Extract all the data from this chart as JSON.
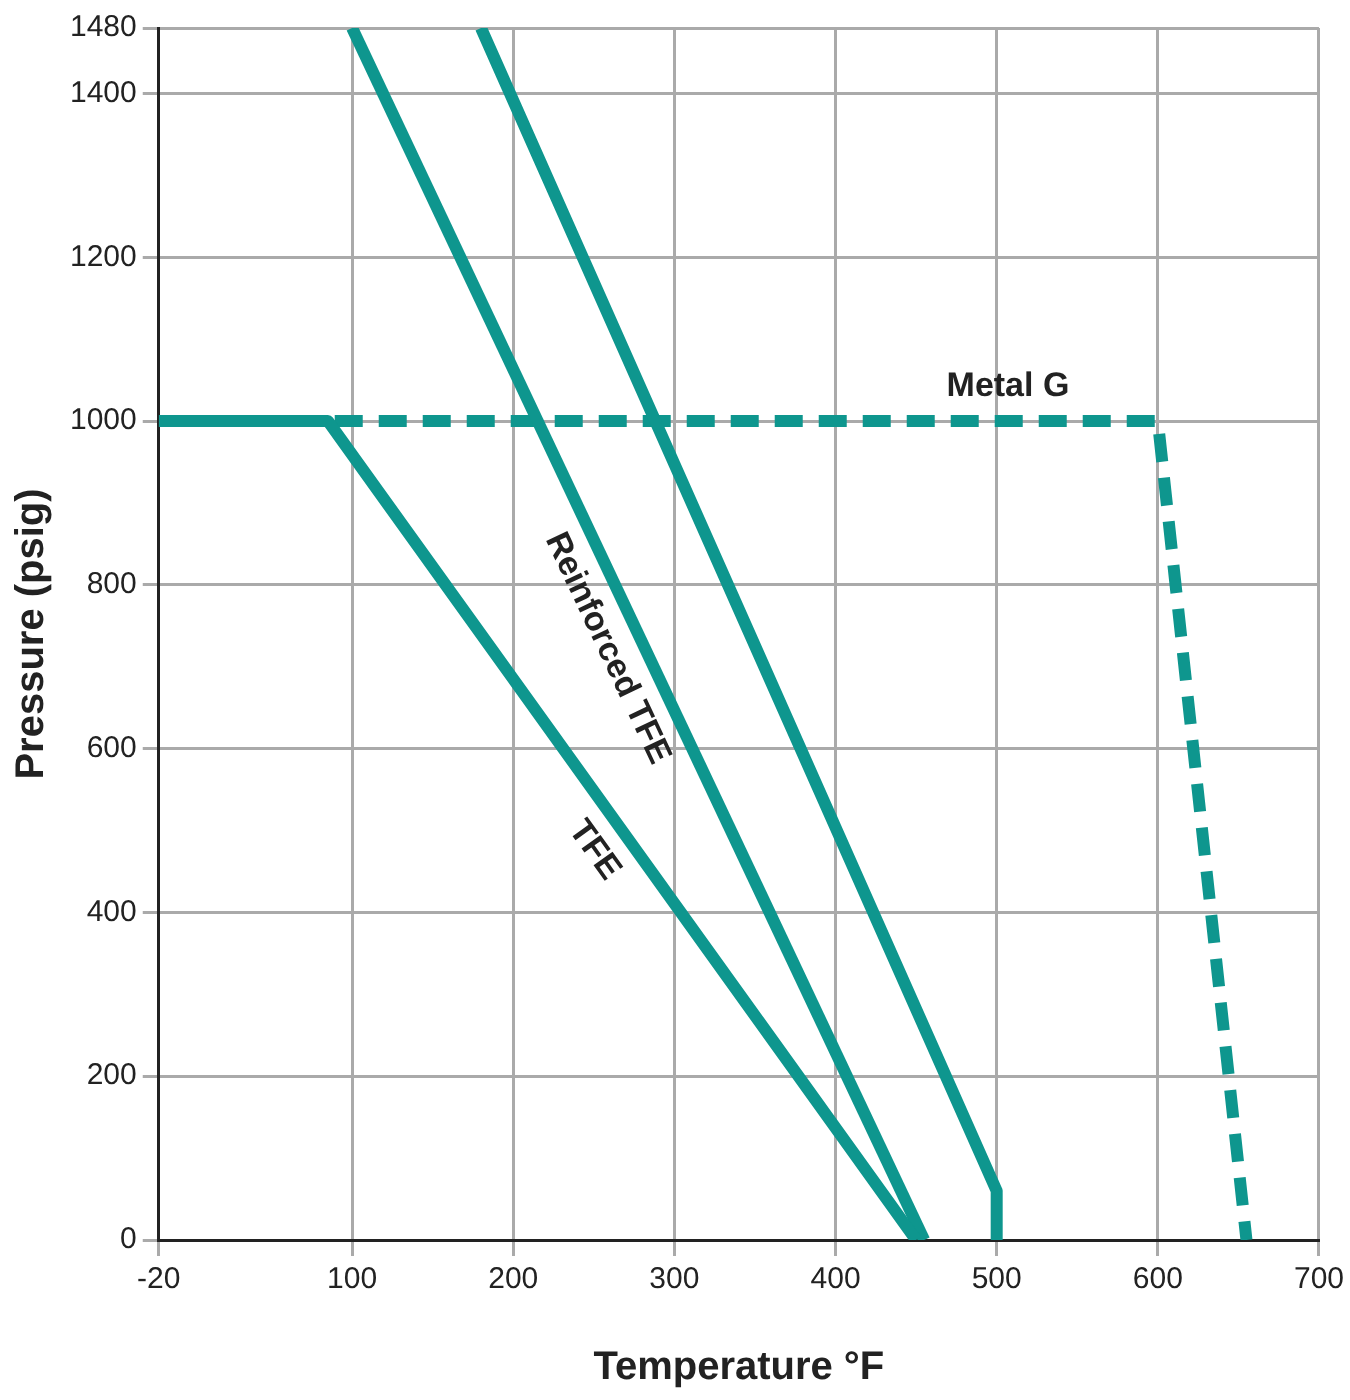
{
  "chart_data": {
    "type": "line",
    "xlabel": "Temperature °F",
    "ylabel": "Pressure (psig)",
    "xlim": [
      -20,
      700
    ],
    "xticks": [
      -20,
      100,
      200,
      300,
      400,
      500,
      600,
      700
    ],
    "ylim": [
      0,
      1480
    ],
    "yticks": [
      0,
      200,
      400,
      600,
      800,
      1000,
      1200,
      1400,
      1480
    ],
    "grid": true,
    "legend": false,
    "marker": "none",
    "series": [
      {
        "name": "TFE",
        "color": "#0e968e",
        "x": [
          -20,
          85,
          450
        ],
        "values": [
          1000,
          1000,
          0
        ]
      },
      {
        "name": "Reinforced TFE",
        "color": "#0e968e",
        "x": [
          100,
          455
        ],
        "values": [
          1480,
          0
        ]
      },
      {
        "color": "#0e968e",
        "x": [
          180,
          500,
          500
        ],
        "values": [
          1480,
          60,
          0
        ]
      },
      {
        "name": "Metal G",
        "color": "#0e968e",
        "line_style": "dashed",
        "x": [
          -20,
          600,
          655
        ],
        "values": [
          1000,
          1000,
          0
        ]
      }
    ]
  }
}
